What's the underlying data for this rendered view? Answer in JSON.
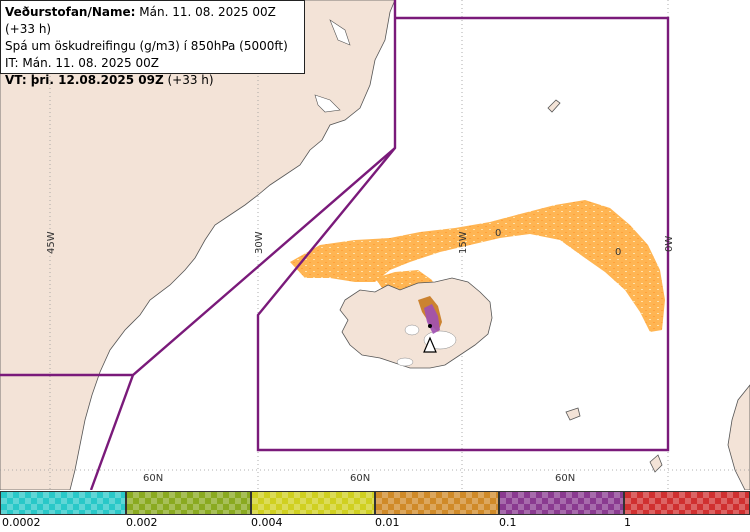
{
  "header": {
    "line1_bold": "Veðurstofan/Name:",
    "line1_rest": "Mán. 11. 08. 2025 00Z (+33 h)",
    "line2": "Spá um öskudreifingu (g/m3) í 850hPa (5000ft)",
    "line3": "IT: Mán. 11. 08. 2025 00Z",
    "line4_bold": "VT: þri. 12.08.2025 09Z",
    "line4_rest": "(+33 h)"
  },
  "map": {
    "lon_labels": [
      "45W",
      "30W",
      "15W",
      "0W"
    ],
    "lat_labels": [
      "60N",
      "60N",
      "60N"
    ],
    "plume_labels": [
      "0",
      "0"
    ],
    "colors": {
      "land": "#f3e3d7",
      "sea": "#ffffff",
      "boundary": "#7a1a7a",
      "plume": "#ffb14a",
      "plume_dark": "#c8781e",
      "plume_purple": "#a050b4"
    }
  },
  "legend": {
    "labels": [
      "0.0002",
      "0.002",
      "0.004",
      "0.01",
      "0.1",
      "1"
    ],
    "colors": [
      "#29c8c8",
      "#8aaa20",
      "#d0d020",
      "#d08a28",
      "#8a3a90",
      "#d03030"
    ]
  }
}
